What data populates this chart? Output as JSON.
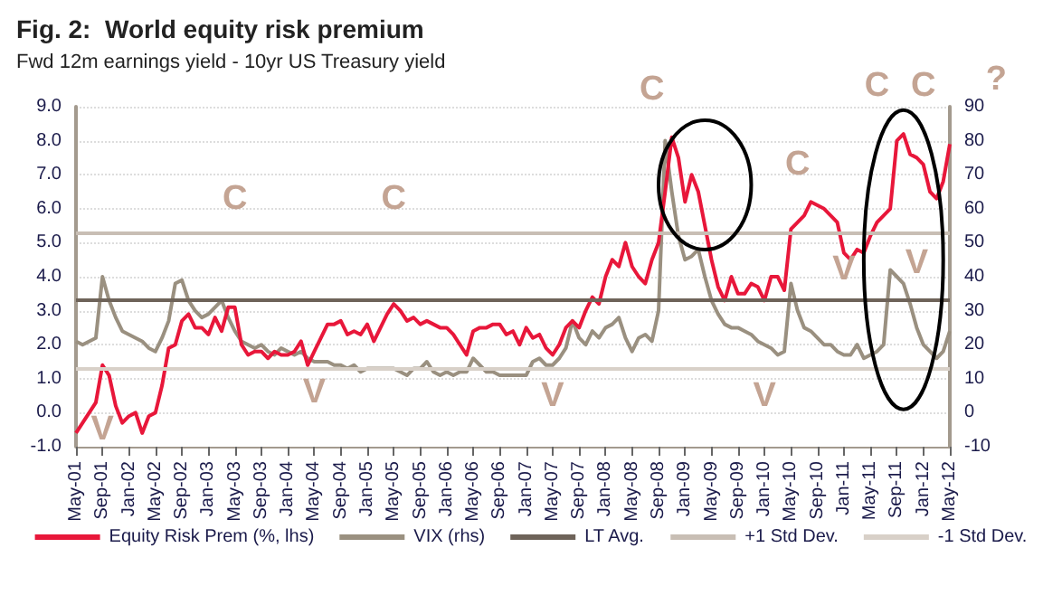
{
  "chart_data": {
    "type": "line",
    "title": "Fig. 2:  World equity risk premium",
    "subtitle": "Fwd 12m earnings yield - 10yr US Treasury yield",
    "categories": [
      "May-01",
      null,
      null,
      null,
      "Sep-01",
      null,
      null,
      null,
      "Jan-02",
      null,
      null,
      null,
      "May-02",
      null,
      null,
      null,
      "Sep-02",
      null,
      null,
      null,
      "Jan-03",
      null,
      null,
      null,
      "May-03",
      null,
      null,
      null,
      "Sep-03",
      null,
      null,
      null,
      "Jan-04",
      null,
      null,
      null,
      "May-04",
      null,
      null,
      null,
      "Sep-04",
      null,
      null,
      null,
      "Jan-05",
      null,
      null,
      null,
      "May-05",
      null,
      null,
      null,
      "Sep-05",
      null,
      null,
      null,
      "Jan-06",
      null,
      null,
      null,
      "May-06",
      null,
      null,
      null,
      "Sep-06",
      null,
      null,
      null,
      "Jan-07",
      null,
      null,
      null,
      "May-07",
      null,
      null,
      null,
      "Sep-07",
      null,
      null,
      null,
      "Jan-08",
      null,
      null,
      null,
      "May-08",
      null,
      null,
      null,
      "Sep-08",
      null,
      null,
      null,
      "Jan-09",
      null,
      null,
      null,
      "May-09",
      null,
      null,
      null,
      "Sep-09",
      null,
      null,
      null,
      "Jan-10",
      null,
      null,
      null,
      "May-10",
      null,
      null,
      null,
      "Sep-10",
      null,
      null,
      null,
      "Jan-11",
      null,
      null,
      null,
      "May-11",
      null,
      null,
      null,
      "Sep-11",
      null,
      null,
      null,
      "Jan-12",
      null,
      null,
      null,
      "May-12"
    ],
    "series": [
      {
        "name": "Equity Risk Prem (%, lhs)",
        "color": "#e8173a",
        "values": [
          -0.6,
          -0.3,
          0.0,
          0.3,
          1.4,
          1.1,
          0.2,
          -0.3,
          -0.1,
          0.0,
          -0.6,
          -0.1,
          0.0,
          0.8,
          1.9,
          2.0,
          2.7,
          2.9,
          2.5,
          2.5,
          2.3,
          2.8,
          2.4,
          3.1,
          3.1,
          2.0,
          1.7,
          1.8,
          1.8,
          1.6,
          1.8,
          1.7,
          1.7,
          1.8,
          2.1,
          1.4,
          1.8,
          2.2,
          2.6,
          2.6,
          2.7,
          2.3,
          2.4,
          2.3,
          2.6,
          2.1,
          2.5,
          2.9,
          3.2,
          3.0,
          2.7,
          2.8,
          2.6,
          2.7,
          2.6,
          2.5,
          2.5,
          2.3,
          2.0,
          1.7,
          2.4,
          2.5,
          2.5,
          2.6,
          2.6,
          2.3,
          2.4,
          2.0,
          2.5,
          2.2,
          2.3,
          1.9,
          1.7,
          2.0,
          2.5,
          2.7,
          2.5,
          3.0,
          3.4,
          3.2,
          4.0,
          4.5,
          4.3,
          5.0,
          4.3,
          4.0,
          3.8,
          4.5,
          5.0,
          6.5,
          8.1,
          7.5,
          6.2,
          7.0,
          6.5,
          5.5,
          4.5,
          3.7,
          3.3,
          4.0,
          3.5,
          3.5,
          3.8,
          3.7,
          3.3,
          4.0,
          4.0,
          3.6,
          5.4,
          5.6,
          5.8,
          6.2,
          6.1,
          6.0,
          5.8,
          5.6,
          4.7,
          4.5,
          4.8,
          4.7,
          5.2,
          5.6,
          5.8,
          6.0,
          8.0,
          8.2,
          7.6,
          7.5,
          7.3,
          6.5,
          6.3,
          6.8,
          7.9
        ]
      },
      {
        "name": "VIX (rhs)",
        "color": "#9a9080",
        "axis": "y2",
        "values": [
          21,
          20,
          21,
          22,
          40,
          33,
          28,
          24,
          23,
          22,
          21,
          19,
          18,
          22,
          27,
          38,
          39,
          33,
          30,
          28,
          29,
          31,
          33,
          28,
          24,
          21,
          20,
          19,
          20,
          18,
          17,
          19,
          18,
          17,
          18,
          16,
          15,
          15,
          15,
          14,
          14,
          13,
          14,
          12,
          13,
          13,
          13,
          13,
          13,
          12,
          11,
          13,
          13,
          15,
          12,
          11,
          12,
          11,
          12,
          12,
          16,
          14,
          12,
          12,
          11,
          11,
          11,
          11,
          11,
          15,
          16,
          14,
          14,
          16,
          19,
          27,
          22,
          20,
          24,
          22,
          25,
          26,
          28,
          22,
          18,
          22,
          23,
          21,
          30,
          80,
          65,
          52,
          45,
          46,
          48,
          40,
          33,
          29,
          26,
          25,
          25,
          24,
          23,
          21,
          20,
          19,
          17,
          18,
          38,
          30,
          25,
          24,
          22,
          20,
          20,
          18,
          17,
          17,
          20,
          16,
          17,
          18,
          20,
          42,
          40,
          38,
          32,
          25,
          20,
          18,
          16,
          18,
          24
        ]
      }
    ],
    "ref_lines": [
      {
        "axis": "y",
        "value": 3.3,
        "label": "LT Avg.",
        "color": "#6e6359"
      },
      {
        "axis": "y",
        "value": 5.3,
        "label": "+1 Std Dev.",
        "color": "#c8beb4"
      },
      {
        "axis": "y",
        "value": 1.3,
        "label": "-1 Std Dev.",
        "color": "#d8d0c8"
      }
    ],
    "ylim": [
      -1,
      9
    ],
    "yticks": [
      {
        "value": -1,
        "label": "-1.0"
      },
      {
        "value": 0,
        "label": "0.0"
      },
      {
        "value": 1,
        "label": "1.0"
      },
      {
        "value": 2,
        "label": "2.0"
      },
      {
        "value": 3,
        "label": "3.0"
      },
      {
        "value": 4,
        "label": "4.0"
      },
      {
        "value": 5,
        "label": "5.0"
      },
      {
        "value": 6,
        "label": "6.0"
      },
      {
        "value": 7,
        "label": "7.0"
      },
      {
        "value": 8,
        "label": "8.0"
      },
      {
        "value": 9,
        "label": "9.0"
      }
    ],
    "y2lim": [
      -10,
      90
    ],
    "y2ticks": [
      -10,
      0,
      10,
      20,
      30,
      40,
      50,
      60,
      70,
      80,
      90
    ],
    "annotations": [
      "C",
      "C",
      "C",
      "C",
      "C",
      "C",
      "?",
      "V",
      "V",
      "V",
      "V",
      "V",
      "V"
    ],
    "grid": "y",
    "legend": "bottom",
    "marker": "none",
    "line_style": "solid"
  }
}
